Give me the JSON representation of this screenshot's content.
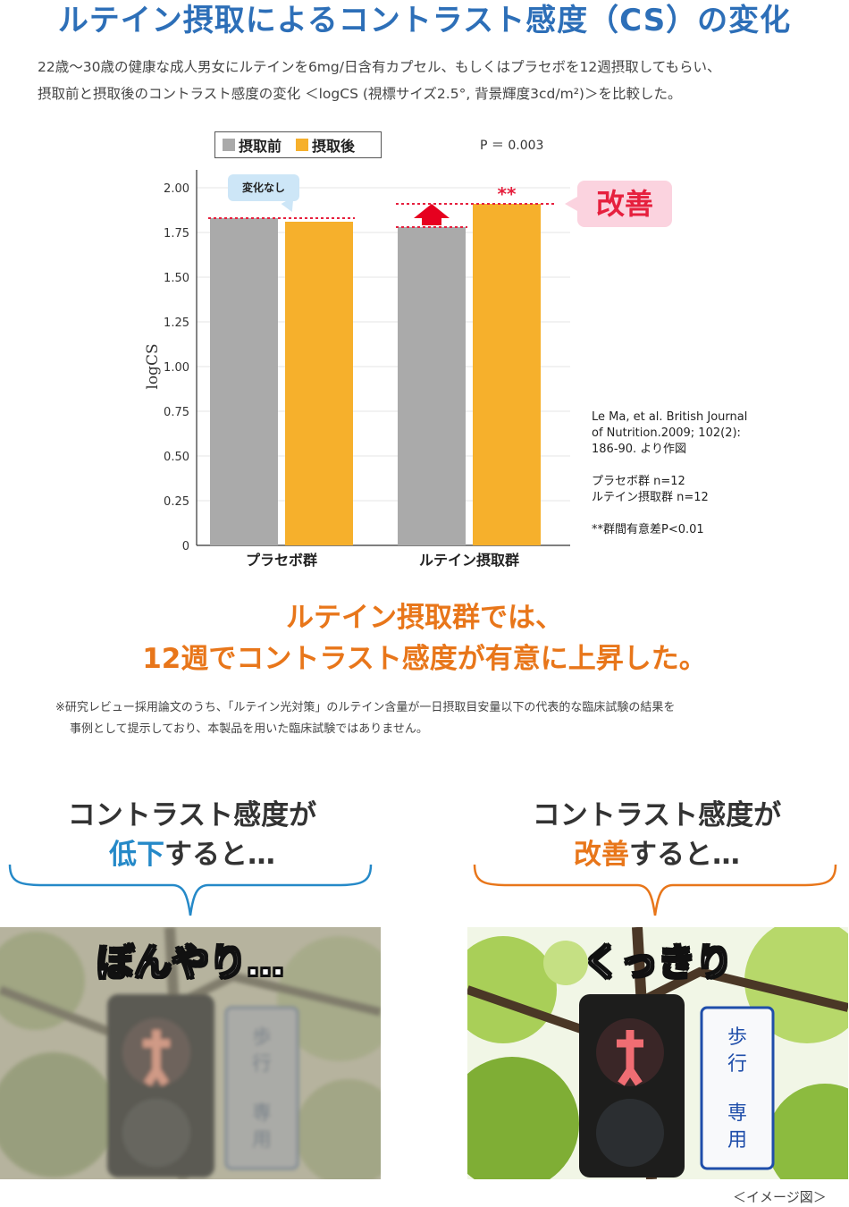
{
  "title": "ルテイン摂取によるコントラスト感度（CS）の変化",
  "description": [
    "22歳〜30歳の健康な成人男女にルテインを6mg/日含有カプセル、もしくはプラセボを12週摂取してもらい、",
    "摂取前と摂取後のコントラスト感度の変化 ＜logCS (視標サイズ2.5°, 背景輝度3cd/m²)＞を比較した。"
  ],
  "chart_data": {
    "type": "bar",
    "categories": [
      "プラセボ群",
      "ルテイン摂取群"
    ],
    "series": [
      {
        "name": "摂取前",
        "values": [
          1.83,
          1.78
        ],
        "color": "#aaaaaa"
      },
      {
        "name": "摂取後",
        "values": [
          1.81,
          1.91
        ],
        "color": "#f6b02c"
      }
    ],
    "ylabel": "logCS",
    "ylim": [
      0,
      2.1
    ],
    "yticks": [
      "0",
      "0.25",
      "0.50",
      "0.75",
      "1.00",
      "1.25",
      "1.50",
      "1.75",
      "2.00"
    ],
    "ytick_values": [
      0,
      0.25,
      0.5,
      0.75,
      1.0,
      1.25,
      1.5,
      1.75,
      2.0
    ],
    "p_value_text": "P ＝ 0.003",
    "significance_mark": "**",
    "grid": true,
    "legend_position": "top-left"
  },
  "annotations": {
    "no_change": "変化なし",
    "improved": "改善"
  },
  "reference": {
    "citation": [
      "Le Ma, et al. British Journal",
      "of Nutrition.2009; 102(2):",
      "186-90. より作図"
    ],
    "groups": [
      "プラセボ群 n=12",
      "ルテイン摂取群 n=12"
    ],
    "significance": "**群間有意差P<0.01"
  },
  "conclusion": [
    "ルテイン摂取群では、",
    "12週でコントラスト感度が有意に上昇した。"
  ],
  "footnote": [
    "※研究レビュー採用論文のうち、「ルテイン光対策」のルテイン含量が一日摂取目安量以下の代表的な臨床試験の結果を",
    "事例として提示しており、本製品を用いた臨床試験ではありません。"
  ],
  "compare": {
    "left": {
      "line1": "コントラスト感度が",
      "key": "低下",
      "rest": "すると…",
      "label": "ぼんやり…",
      "accent": "#2589c8"
    },
    "right": {
      "line1": "コントラスト感度が",
      "key": "改善",
      "rest": "すると…",
      "label": "くっきり",
      "accent": "#e8761a"
    }
  },
  "image_note": "＜イメージ図＞"
}
